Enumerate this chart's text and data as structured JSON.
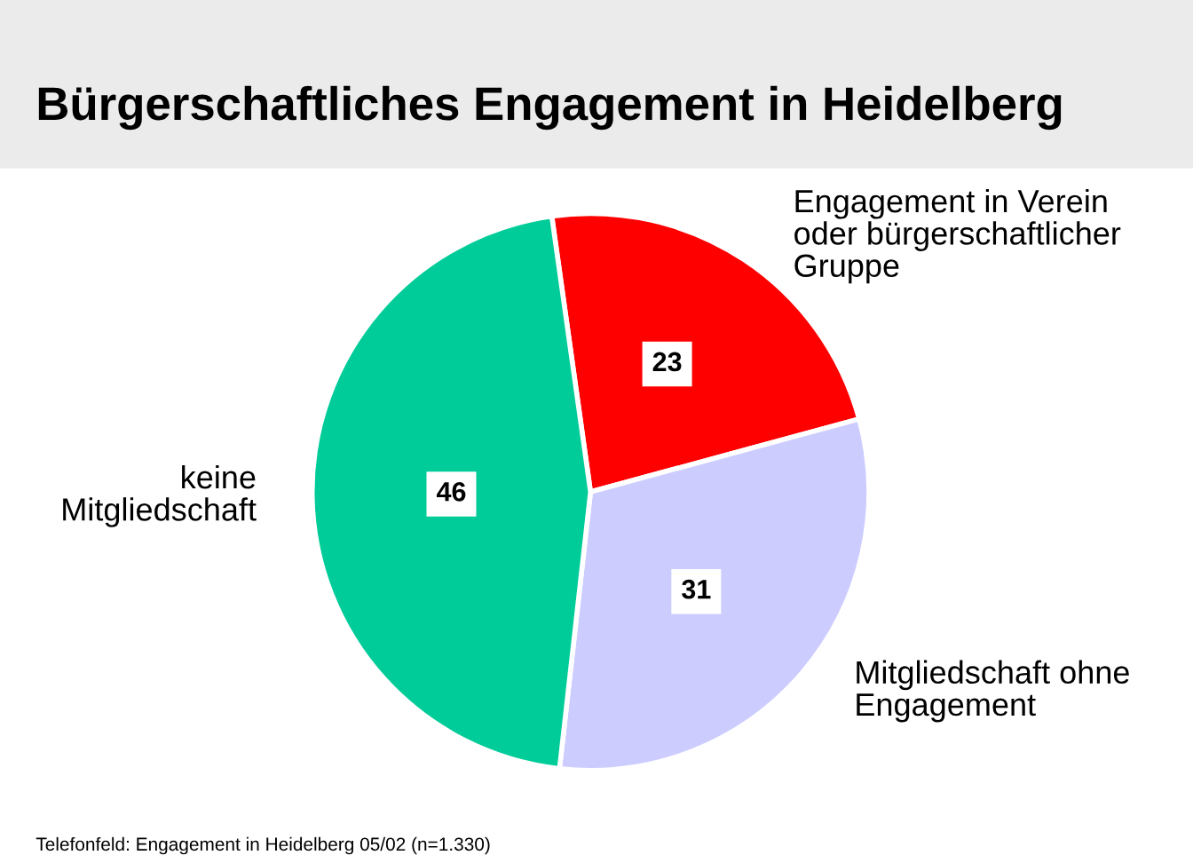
{
  "chart_data": {
    "type": "pie",
    "title": "Bürgerschaftliches Engagement in Heidelberg",
    "categories": [
      "Engagement in Verein\noder bürgerschaftlicher\nGruppe",
      "Mitgliedschaft ohne\nEngagement",
      "keine\nMitgliedschaft"
    ],
    "values": [
      23,
      31,
      46
    ],
    "colors": [
      "#ff0000",
      "#ccccff",
      "#00cc99"
    ],
    "data_labels": true,
    "annotations": [
      "Telefonfeld: Engagement in Heidelberg 05/02 (n=1.330)"
    ]
  }
}
